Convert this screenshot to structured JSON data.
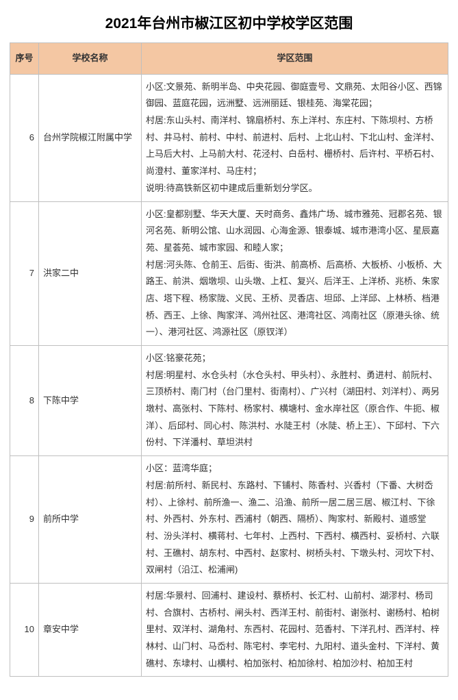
{
  "title": "2021年台州市椒江区初中学校学区范围",
  "columns": {
    "idx": "序号",
    "name": "学校名称",
    "range": "学区范围"
  },
  "rows": [
    {
      "idx": "6",
      "name": "台州学院椒江附属中学",
      "range": "小区:文景苑、新明半岛、中央花园、御庭壹号、文鼎苑、太阳谷小区、西锦御园、蓝庭花园，远洲墅、远洲丽廷、银桂苑、海棠花园；\n村居:东山头村、南洋村、锦扇桥村、东上洋村、东庄村、下陈坝村、方桥村、井马村、前村、中村、前进村、后村、上北山村、下北山村、金洋村、上马后大村、上马前大村、花泾村、白岳村、栅桥村、后许村、平桥石村、尚澄村、董家洋村、马庄村；\n说明:待高铁新区初中建成后重新划分学区。"
    },
    {
      "idx": "7",
      "name": "洪家二中",
      "range": "小区:皇都别墅、华天大厦、天时商务、鑫炜广场、城市雅苑、冠郡名苑、银河名苑、新明公馆、山水润园、心海金源、银泰城、城市港湾小区、星辰嘉苑、星荟苑、城市家园、和睦人家；\n村居:河头陈、仓前王、后街、街洪、前高桥、后高桥、大板桥、小板桥、大路王、前洪、烟墩坝、山头墩、上杠、复兴、后洋王、上洋桥、兆桥、朱家店、塔下程、杨家陇、义民、王桥、灵香店、坦邱、上洋邱、上林桥、档港桥、西王、上徐、陶家洋、鸿州社区、港湾社区、鸿南社区（原港头徐、统一）、港河社区、鸿源社区（原钗洋）"
    },
    {
      "idx": "8",
      "name": "下陈中学",
      "range": "小区:铭豪花苑；\n村居:明星村、水仓头村（水仓头村、甲头村）、永胜村、勇进村、前阮村、三顶桥村、南门村（台门里村、街南村）、广兴村（湖田村、刘洋村）、两另墩村、高张村、下陈村、杨家村、横塘村、金水岸社区（原合作、牛扼、椒洋）、后邱村、同心村、陈洪村、水陡王村（水陡、桥上王）、下邱村、下六份村、下洋潘村、草坦洪村"
    },
    {
      "idx": "9",
      "name": "前所中学",
      "range": "小区：蓝湾华庭；\n村居:前所村、新民村、东路村、下铺村、陈香村、兴香村（下番、大树岙村）、上徐村、前所渔一、渔二、沿渔、前所一居二居三居、椒江村、下徐村、外西村、外东村、西浦村（朝西、隔桥）、陶家村、新殿村、道感堂村、汾头洋村、横蒋村、七年村、上西村、下西村、横西村、妥桥村、六联村、王礁村、胡东村、中西村、赵家村、树桥头村、下墩头村、河坎下村、双闸村（沿江、松浦闸)"
    },
    {
      "idx": "10",
      "name": "章安中学",
      "range": "村居:华景村、回浦村、建设村、蔡桥村、长汇村、山前村、湖漻村、杨司村、合旗村、古桥村、闸头村、西洋王村、前街村、谢张村、谢杨村、柏树里村、双洋村、湖角村、东西村、花园村、范香村、下洋孔村、西洋村、梓林村、山门村、马岙村、陈宅村、李宅村、九阳村、道头金村、下洋村、黄礁村、东埭村、山横村、柏加张村、柏加徐村、柏加沙村、柏加王村"
    }
  ]
}
